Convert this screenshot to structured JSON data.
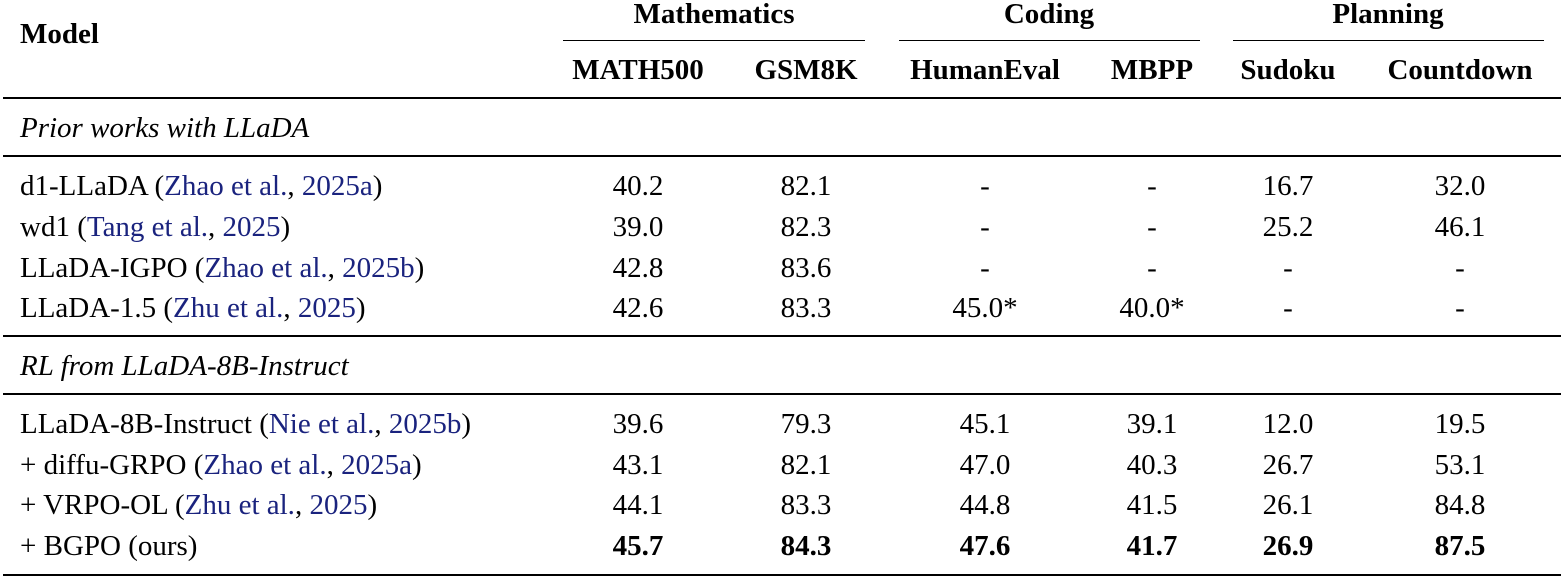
{
  "table": {
    "model_header": "Model",
    "groups": [
      {
        "label": "Mathematics",
        "columns": [
          "MATH500",
          "GSM8K"
        ]
      },
      {
        "label": "Coding",
        "columns": [
          "HumanEval",
          "MBPP"
        ]
      },
      {
        "label": "Planning",
        "columns": [
          "Sudoku",
          "Countdown"
        ]
      }
    ],
    "sections": [
      {
        "title": "Prior works with LLaDA",
        "rows": [
          {
            "name": "d1-LLaDA",
            "cite_author": "Zhao et al.",
            "cite_year": "2025a",
            "values": [
              "40.2",
              "82.1",
              "-",
              "-",
              "16.7",
              "32.0"
            ]
          },
          {
            "name": "wd1",
            "cite_author": "Tang et al.",
            "cite_year": "2025",
            "values": [
              "39.0",
              "82.3",
              "-",
              "-",
              "25.2",
              "46.1"
            ]
          },
          {
            "name": "LLaDA-IGPO",
            "cite_author": "Zhao et al.",
            "cite_year": "2025b",
            "values": [
              "42.8",
              "83.6",
              "-",
              "-",
              "-",
              "-"
            ]
          },
          {
            "name": "LLaDA-1.5",
            "cite_author": "Zhu et al.",
            "cite_year": "2025",
            "values": [
              "42.6",
              "83.3",
              "45.0*",
              "40.0*",
              "-",
              "-"
            ]
          }
        ]
      },
      {
        "title": "RL from LLaDA-8B-Instruct",
        "rows": [
          {
            "name": "LLaDA-8B-Instruct",
            "cite_author": "Nie et al.",
            "cite_year": "2025b",
            "values": [
              "39.6",
              "79.3",
              "45.1",
              "39.1",
              "12.0",
              "19.5"
            ]
          },
          {
            "name": "+ diffu-GRPO",
            "cite_author": "Zhao et al.",
            "cite_year": "2025a",
            "values": [
              "43.1",
              "82.1",
              "47.0",
              "40.3",
              "26.7",
              "53.1"
            ]
          },
          {
            "name": "+ VRPO-OL",
            "cite_author": "Zhu et al.",
            "cite_year": "2025",
            "values": [
              "44.1",
              "83.3",
              "44.8",
              "41.5",
              "26.1",
              "84.8"
            ]
          },
          {
            "name": "+ BGPO (ours)",
            "values": [
              "45.7",
              "84.3",
              "47.6",
              "41.7",
              "26.9",
              "87.5"
            ],
            "bold_values": true
          }
        ]
      }
    ]
  }
}
